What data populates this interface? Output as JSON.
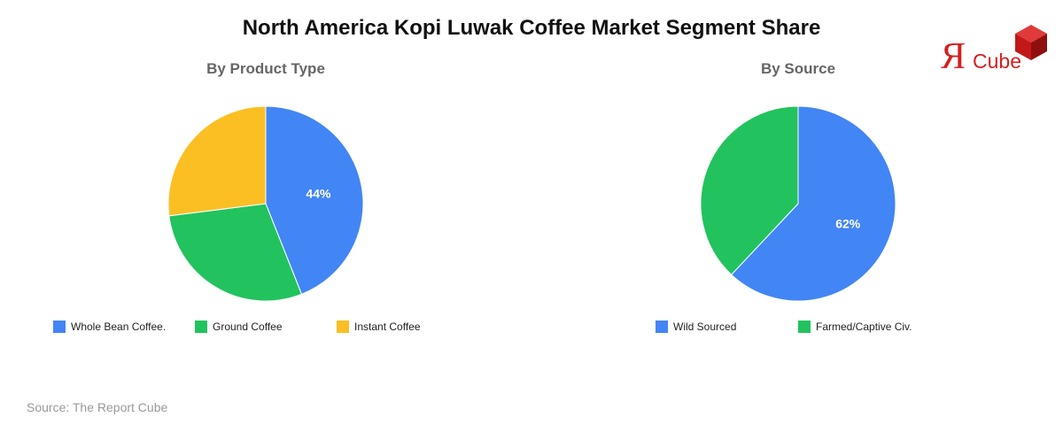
{
  "title": "North America Kopi Luwak Coffee Market Segment Share",
  "logo": {
    "text_r": "Я",
    "text_cube": "Cube"
  },
  "source": "Source: The Report Cube",
  "chart_data": [
    {
      "type": "pie",
      "title": "By Product Type",
      "categories": [
        "Whole Bean Coffee.",
        "Ground Coffee",
        "Instant Coffee"
      ],
      "values": [
        44,
        29,
        27
      ],
      "data_labels": [
        "44%",
        "",
        ""
      ],
      "colors": [
        "#4285f4",
        "#22c35e",
        "#fbbf24"
      ],
      "legend": "bottom"
    },
    {
      "type": "pie",
      "title": "By Source",
      "categories": [
        "Wild Sourced",
        "Farmed/Captive Civ."
      ],
      "values": [
        62,
        38
      ],
      "data_labels": [
        "62%",
        ""
      ],
      "colors": [
        "#4285f4",
        "#22c35e"
      ],
      "legend": "bottom"
    }
  ]
}
